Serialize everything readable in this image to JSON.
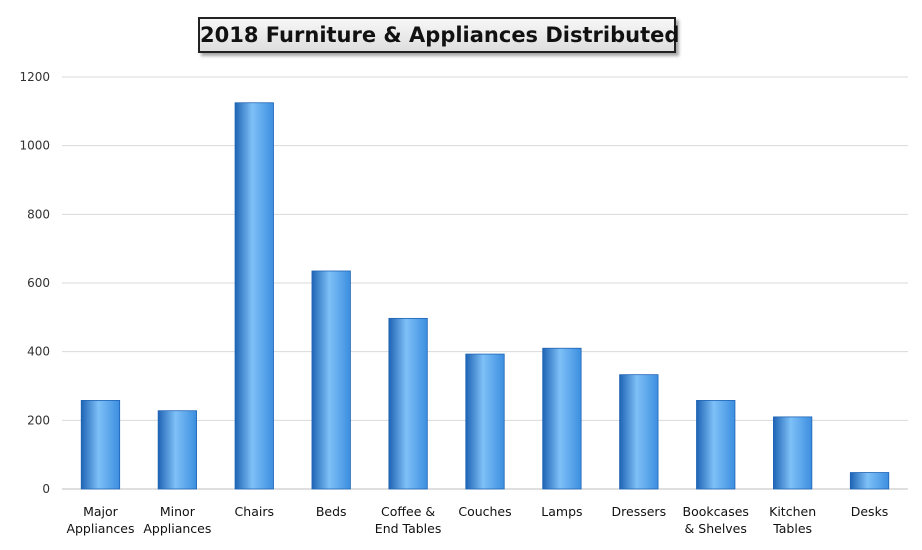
{
  "chart_data": {
    "type": "bar",
    "title": "2018 Furniture & Appliances Distributed",
    "xlabel": "",
    "ylabel": "",
    "categories": [
      [
        "Major",
        "Appliances"
      ],
      [
        "Minor",
        "Appliances"
      ],
      [
        "Chairs"
      ],
      [
        "Beds"
      ],
      [
        "Coffee &",
        "End Tables"
      ],
      [
        "Couches"
      ],
      [
        "Lamps"
      ],
      [
        "Dressers"
      ],
      [
        "Bookcases",
        "& Shelves"
      ],
      [
        "Kitchen",
        "Tables"
      ],
      [
        "Desks"
      ]
    ],
    "values": [
      258,
      228,
      1125,
      635,
      497,
      393,
      410,
      333,
      258,
      210,
      48
    ],
    "ylim": [
      0,
      1200
    ],
    "yticks": [
      0,
      200,
      400,
      600,
      800,
      1000,
      1200
    ],
    "grid": true,
    "legend": "none",
    "bar_color": "#3c8ee0",
    "bar_color_light": "#7ec0f7",
    "bar_color_dark": "#1f64b5",
    "grid_color": "#d9d9d9",
    "axis_color": "#bfbfbf"
  }
}
